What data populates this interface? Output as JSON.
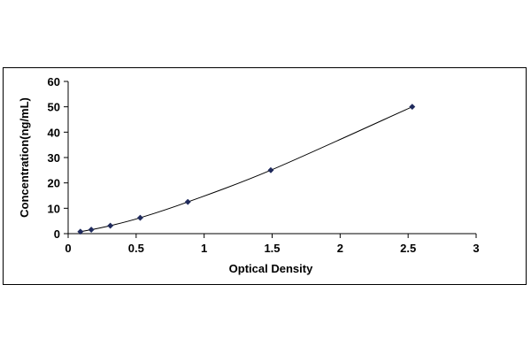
{
  "chart_data": {
    "type": "scatter",
    "title": "",
    "xlabel": "Optical Density",
    "ylabel": "Concentration(ng/mL)",
    "xlim": [
      0,
      3
    ],
    "ylim": [
      0,
      60
    ],
    "x_ticks": [
      "0",
      "0.5",
      "1",
      "1.5",
      "2",
      "2.5",
      "3"
    ],
    "y_ticks": [
      "0",
      "10",
      "20",
      "30",
      "40",
      "50",
      "60"
    ],
    "grid": false,
    "legend": "none",
    "series": [
      {
        "x": [
          0.09,
          0.17,
          0.31,
          0.53,
          0.88,
          1.49,
          2.53
        ],
        "y": [
          0.78,
          1.56,
          3.13,
          6.25,
          12.5,
          25,
          50
        ],
        "marker": "diamond",
        "fit_line": true,
        "color": "#1f2a5c"
      }
    ]
  }
}
